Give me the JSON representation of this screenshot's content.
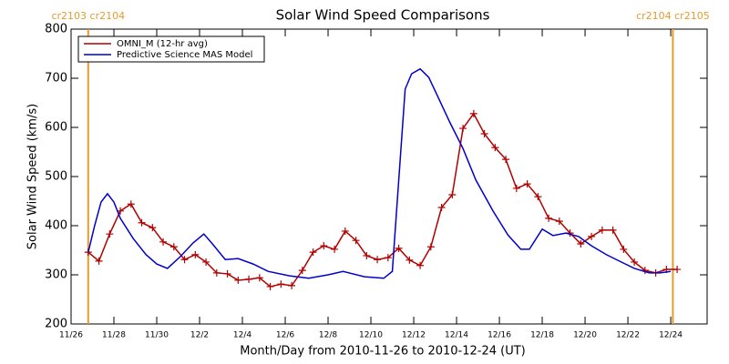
{
  "chart_data": {
    "type": "line",
    "title": "Solar Wind Speed Comparisons",
    "xlabel": "Month/Day from 2010-11-26 to 2010-12-24 (UT)",
    "ylabel": "Solar Wind Speed (km/s)",
    "xlim": [
      0,
      29.7
    ],
    "ylim": [
      200,
      800
    ],
    "yticks": [
      200,
      300,
      400,
      500,
      600,
      700,
      800
    ],
    "xticks": [
      {
        "value": 0,
        "label": "11/26"
      },
      {
        "value": 2,
        "label": "11/28"
      },
      {
        "value": 4,
        "label": "11/30"
      },
      {
        "value": 6,
        "label": "12/2"
      },
      {
        "value": 8,
        "label": "12/4"
      },
      {
        "value": 10,
        "label": "12/6"
      },
      {
        "value": 12,
        "label": "12/8"
      },
      {
        "value": 14,
        "label": "12/10"
      },
      {
        "value": 16,
        "label": "12/12"
      },
      {
        "value": 18,
        "label": "12/14"
      },
      {
        "value": 20,
        "label": "12/16"
      },
      {
        "value": 22,
        "label": "12/18"
      },
      {
        "value": 24,
        "label": "12/20"
      },
      {
        "value": 26,
        "label": "12/22"
      },
      {
        "value": 28,
        "label": "12/24"
      }
    ],
    "vlines": [
      {
        "x": 0.8,
        "label": "cr2103 cr2104",
        "color": "#e89a2c"
      },
      {
        "x": 28.1,
        "label": "cr2104 cr2105",
        "color": "#e89a2c"
      }
    ],
    "legend": "upper left",
    "series": [
      {
        "name": "OMNI_M (12-hr avg)",
        "color": "#b00000",
        "markers": true,
        "x": [
          0.8,
          1.3,
          1.8,
          2.3,
          2.8,
          3.3,
          3.8,
          4.3,
          4.8,
          5.3,
          5.8,
          6.3,
          6.8,
          7.3,
          7.8,
          8.3,
          8.8,
          9.3,
          9.8,
          10.3,
          10.8,
          11.3,
          11.8,
          12.3,
          12.8,
          13.3,
          13.8,
          14.3,
          14.8,
          15.3,
          15.8,
          16.3,
          16.8,
          17.3,
          17.8,
          18.3,
          18.8,
          19.3,
          19.8,
          20.3,
          20.8,
          21.3,
          21.8,
          22.3,
          22.8,
          23.3,
          23.8,
          24.3,
          24.8,
          25.3,
          25.8,
          26.3,
          26.8,
          27.3,
          27.8,
          28.3
        ],
        "values": [
          346,
          328,
          383,
          430,
          444,
          406,
          396,
          367,
          357,
          331,
          341,
          326,
          304,
          302,
          289,
          291,
          294,
          276,
          281,
          278,
          309,
          346,
          359,
          352,
          389,
          370,
          339,
          331,
          335,
          354,
          330,
          319,
          357,
          437,
          463,
          598,
          628,
          587,
          559,
          535,
          476,
          485,
          459,
          415,
          409,
          385,
          363,
          378,
          391,
          391,
          352,
          326,
          309,
          304,
          311,
          311
        ]
      },
      {
        "name": "Predictive Science MAS Model",
        "color": "#0000cc",
        "markers": false,
        "x": [
          0.8,
          1.1,
          1.4,
          1.7,
          2.0,
          2.3,
          2.9,
          3.5,
          4.0,
          4.5,
          5.1,
          5.7,
          6.2,
          6.6,
          7.2,
          7.8,
          8.5,
          9.2,
          10.2,
          11.1,
          12.0,
          12.7,
          13.7,
          14.6,
          15.0,
          15.6,
          15.9,
          16.3,
          16.7,
          17.1,
          17.7,
          18.3,
          18.9,
          19.7,
          20.4,
          21.0,
          21.4,
          22.0,
          22.5,
          23.1,
          23.7,
          24.3,
          25.0,
          25.6,
          26.3,
          27.0,
          27.5,
          28.0
        ],
        "values": [
          346,
          400,
          448,
          465,
          448,
          415,
          374,
          341,
          322,
          313,
          337,
          365,
          383,
          363,
          331,
          333,
          322,
          307,
          298,
          293,
          300,
          307,
          296,
          293,
          307,
          678,
          709,
          719,
          702,
          665,
          609,
          557,
          493,
          430,
          381,
          352,
          352,
          393,
          380,
          385,
          378,
          359,
          341,
          328,
          313,
          304,
          304,
          307
        ]
      }
    ]
  }
}
